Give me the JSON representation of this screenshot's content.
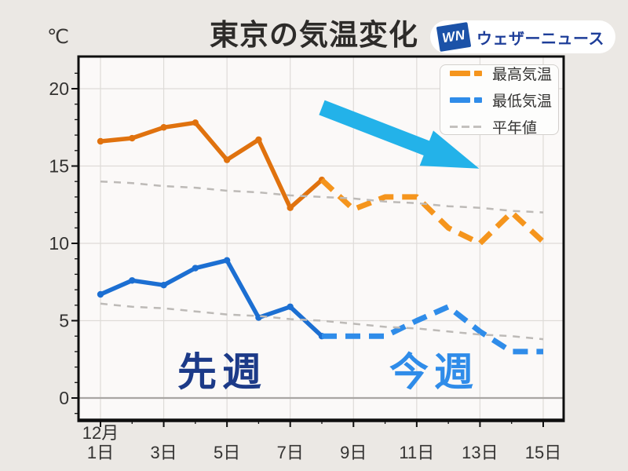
{
  "header": {
    "title": "東京の気温変化",
    "logo": {
      "mark": "WN",
      "name": "ウェザーニュース"
    }
  },
  "legend": [
    {
      "label": "最高気温",
      "color": "#f5951d",
      "style": "thick-dash"
    },
    {
      "label": "最低気温",
      "color": "#2f8ce9",
      "style": "thick-dash"
    },
    {
      "label": "平年値",
      "color": "#c4c1be",
      "style": "thin-dash"
    }
  ],
  "annotations": {
    "last_week": {
      "text": "先週",
      "color": "#1c3a88"
    },
    "this_week": {
      "text": "今週",
      "color": "#2f8ce9"
    }
  },
  "arrow": {
    "meaning": "temperature-drop",
    "color": "#23b2e9"
  },
  "chart_data": {
    "type": "line",
    "title": "東京の気温変化",
    "ylabel": "℃",
    "x_month_label": "12月",
    "xlabel": "",
    "days": [
      1,
      2,
      3,
      4,
      5,
      6,
      7,
      8,
      9,
      10,
      11,
      12,
      13,
      14,
      15
    ],
    "x_tick_days": [
      1,
      3,
      5,
      7,
      9,
      11,
      13,
      15
    ],
    "x_tick_labels": [
      "1日",
      "3日",
      "5日",
      "7日",
      "9日",
      "11日",
      "13日",
      "15日"
    ],
    "yticks": [
      0,
      5,
      10,
      15,
      20
    ],
    "ylim": [
      -1.5,
      22.3
    ],
    "grid": true,
    "legend_position": "upper-right",
    "series": [
      {
        "name": "最高気温(実況)",
        "style": "solid",
        "color": "#e0720e",
        "days": [
          1,
          2,
          3,
          4,
          5,
          6,
          7,
          8
        ],
        "values": [
          16.6,
          16.8,
          17.5,
          17.8,
          15.4,
          16.7,
          12.3,
          14.1
        ]
      },
      {
        "name": "最高気温(予想)",
        "style": "dashed",
        "color": "#f5951d",
        "days": [
          8,
          9,
          10,
          11,
          12,
          13,
          14,
          15
        ],
        "values": [
          14.1,
          12.2,
          13.0,
          13.0,
          11.0,
          10.0,
          12.0,
          10.1
        ]
      },
      {
        "name": "最低気温(実況)",
        "style": "solid",
        "color": "#1c6fd2",
        "days": [
          1,
          2,
          3,
          4,
          5,
          6,
          7,
          8
        ],
        "values": [
          6.7,
          7.6,
          7.3,
          8.4,
          8.9,
          5.2,
          5.9,
          4.0
        ]
      },
      {
        "name": "最低気温(予想)",
        "style": "dashed",
        "color": "#2f8ce9",
        "days": [
          8,
          9,
          10,
          11,
          12,
          13,
          14,
          15
        ],
        "values": [
          4.0,
          4.0,
          4.0,
          5.0,
          5.9,
          4.3,
          3.0,
          3.0
        ]
      },
      {
        "name": "平年値(最高)",
        "style": "normal",
        "color": "#bdbab7",
        "days": [
          1,
          2,
          3,
          4,
          5,
          6,
          7,
          8,
          9,
          10,
          11,
          12,
          13,
          14,
          15
        ],
        "values": [
          14.0,
          13.9,
          13.7,
          13.6,
          13.4,
          13.3,
          13.1,
          13.0,
          12.9,
          12.7,
          12.6,
          12.4,
          12.3,
          12.1,
          12.0
        ]
      },
      {
        "name": "平年値(最低)",
        "style": "normal",
        "color": "#bdbab7",
        "days": [
          1,
          2,
          3,
          4,
          5,
          6,
          7,
          8,
          9,
          10,
          11,
          12,
          13,
          14,
          15
        ],
        "values": [
          6.1,
          5.9,
          5.8,
          5.6,
          5.4,
          5.3,
          5.1,
          5.0,
          4.8,
          4.6,
          4.5,
          4.3,
          4.1,
          4.0,
          3.8
        ]
      }
    ]
  }
}
